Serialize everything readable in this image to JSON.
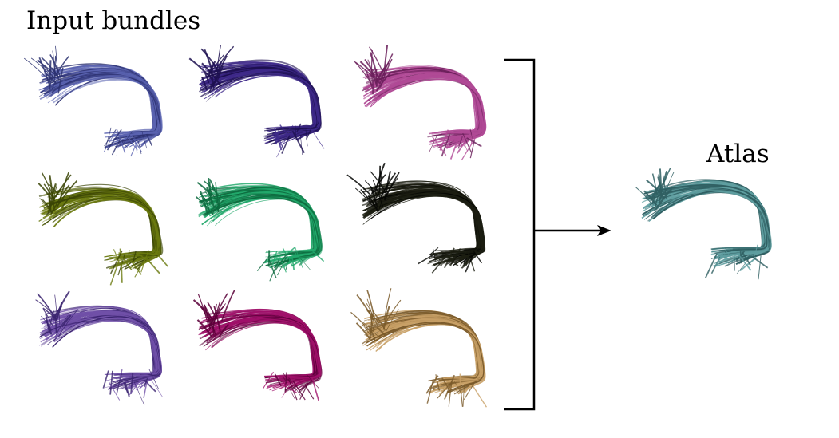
{
  "labels": {
    "input_title": "Input bundles",
    "output_title": "Atlas"
  },
  "input_bundles": [
    {
      "color": "#5a63b0",
      "shade": "#2c3170"
    },
    {
      "color": "#3f2a8a",
      "shade": "#1d1050"
    },
    {
      "color": "#b04a96",
      "shade": "#6a1f5a"
    },
    {
      "color": "#6b7a10",
      "shade": "#3a4405"
    },
    {
      "color": "#22a86b",
      "shade": "#0d6a3e"
    },
    {
      "color": "#1c1e12",
      "shade": "#050603"
    },
    {
      "color": "#7050a8",
      "shade": "#3b2470"
    },
    {
      "color": "#a0106a",
      "shade": "#5a0038"
    },
    {
      "color": "#c8a066",
      "shade": "#7a5a2a"
    }
  ],
  "atlas_bundle": {
    "color": "#5f9ea0",
    "shade": "#2f5f62"
  },
  "connector": {
    "color": "#000000"
  }
}
